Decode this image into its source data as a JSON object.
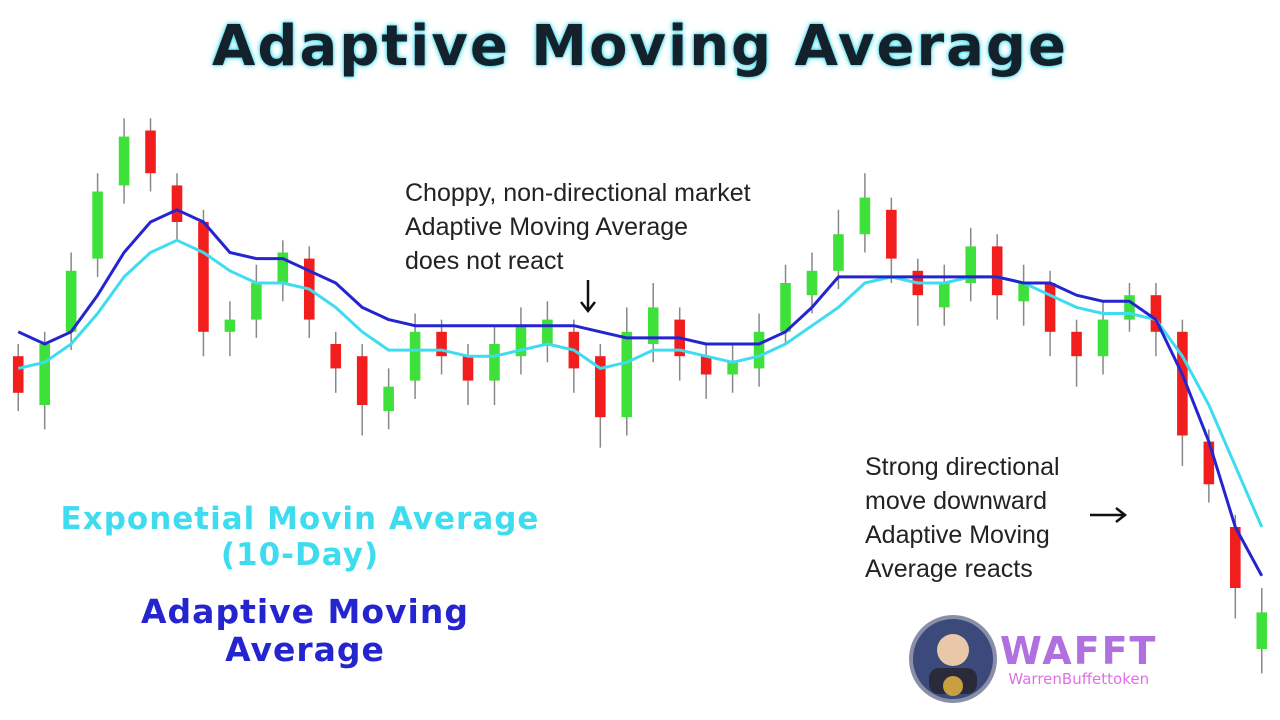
{
  "chart_data": {
    "type": "candlestick",
    "title": "Adaptive Moving Average",
    "categories": [
      null,
      null,
      null,
      null,
      null,
      null,
      null,
      null,
      null,
      null,
      null,
      null,
      null,
      null,
      null,
      null,
      null,
      null,
      null,
      null,
      null,
      null,
      null,
      null,
      null,
      null,
      null,
      null,
      null,
      null,
      null,
      null,
      null,
      null,
      null,
      null,
      null,
      null,
      null,
      null,
      null,
      null,
      null,
      null,
      null,
      null,
      null,
      null
    ],
    "open": [
      58,
      50,
      62,
      74,
      86,
      95,
      86,
      80,
      62,
      64,
      70,
      74,
      60,
      58,
      49,
      54,
      62,
      58,
      54,
      58,
      60,
      62,
      58,
      48,
      60,
      64,
      58,
      55,
      56,
      62,
      68,
      72,
      78,
      82,
      72,
      66,
      70,
      76,
      67,
      70,
      62,
      58,
      64,
      68,
      62,
      44,
      30,
      10
    ],
    "high": [
      60,
      62,
      75,
      88,
      97,
      97,
      88,
      82,
      67,
      73,
      77,
      76,
      62,
      60,
      56,
      65,
      64,
      60,
      63,
      66,
      67,
      64,
      60,
      66,
      70,
      66,
      60,
      60,
      65,
      73,
      75,
      82,
      88,
      84,
      74,
      73,
      79,
      78,
      73,
      72,
      64,
      67,
      70,
      70,
      64,
      46,
      32,
      20
    ],
    "low": [
      49,
      46,
      59,
      71,
      83,
      85,
      77,
      58,
      58,
      61,
      67,
      61,
      52,
      45,
      46,
      51,
      55,
      50,
      50,
      55,
      57,
      52,
      43,
      45,
      57,
      54,
      51,
      52,
      53,
      60,
      65,
      69,
      75,
      70,
      63,
      63,
      67,
      64,
      63,
      58,
      53,
      55,
      62,
      58,
      40,
      34,
      15,
      6
    ],
    "close": [
      52,
      60,
      72,
      85,
      94,
      88,
      80,
      62,
      64,
      70,
      75,
      64,
      56,
      50,
      53,
      62,
      58,
      54,
      60,
      63,
      64,
      56,
      48,
      62,
      66,
      58,
      55,
      57,
      62,
      70,
      72,
      78,
      84,
      74,
      68,
      70,
      76,
      68,
      70,
      62,
      58,
      64,
      68,
      62,
      45,
      37,
      20,
      16
    ],
    "up_color": "#3ee03a",
    "down_color": "#f21d1d",
    "ylim": [
      0,
      100
    ],
    "series": [
      {
        "name": "Exponetial Movin Average (10-Day)",
        "color": "#3fdcf0",
        "values": [
          56,
          57,
          60,
          65,
          71,
          75,
          77,
          75,
          72,
          70,
          70,
          69,
          66,
          62,
          59,
          59,
          59,
          58,
          58,
          59,
          60,
          59,
          56,
          57,
          59,
          59,
          58,
          57,
          58,
          60,
          63,
          66,
          70,
          71,
          70,
          70,
          71,
          71,
          70,
          68,
          66,
          65,
          65,
          64,
          58,
          50,
          40,
          30
        ]
      },
      {
        "name": "Adaptive Moving Average",
        "color": "#2525d0",
        "values": [
          62,
          60,
          62,
          68,
          75,
          80,
          82,
          80,
          75,
          74,
          74,
          72,
          70,
          66,
          64,
          63,
          63,
          63,
          63,
          63,
          63,
          63,
          62,
          61,
          61,
          61,
          60,
          60,
          60,
          62,
          66,
          71,
          71,
          71,
          71,
          71,
          71,
          71,
          70,
          70,
          68,
          67,
          67,
          64,
          55,
          44,
          30,
          22
        ]
      }
    ],
    "annotations": [
      {
        "lines": [
          "Choppy, non-directional market",
          "Adaptive Moving Average",
          "does not react"
        ]
      },
      {
        "lines": [
          "Strong directional",
          "move downward",
          "Adaptive Moving",
          "Average reacts"
        ]
      }
    ]
  },
  "logo": {
    "name": "WAFFT",
    "tagline": "WarrenBuffettoken"
  }
}
